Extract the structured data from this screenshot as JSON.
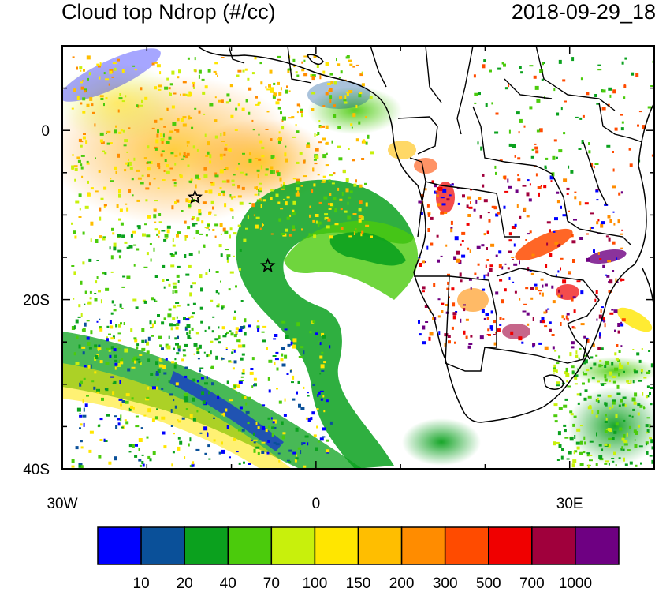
{
  "header": {
    "title": "Cloud top Ndrop (#/cc)",
    "timestamp": "2018-09-29_18"
  },
  "map": {
    "projection": "lat-lon",
    "lon_range": [
      -30,
      40
    ],
    "lat_range": [
      -40,
      10
    ],
    "x_tick_labels": [
      {
        "lon": -30,
        "label": "30W"
      },
      {
        "lon": 0,
        "label": "0"
      },
      {
        "lon": 30,
        "label": "30E"
      }
    ],
    "y_tick_labels": [
      {
        "lat": 0,
        "label": "0"
      },
      {
        "lat": -20,
        "label": "20S"
      },
      {
        "lat": -40,
        "label": "40S"
      }
    ],
    "markers": [
      {
        "name": "star-marker-west",
        "lon": -14.3,
        "lat": -7.9,
        "symbol": "star"
      },
      {
        "name": "star-marker-center",
        "lon": -5.7,
        "lat": -16.0,
        "symbol": "star"
      }
    ]
  },
  "colorbar": {
    "colors": [
      "#0000ff",
      "#0a5099",
      "#0ba11e",
      "#4bcb0c",
      "#c8f00c",
      "#ffe600",
      "#ffbe00",
      "#ff8c00",
      "#ff4b00",
      "#f00000",
      "#a0003c",
      "#6e0082"
    ],
    "labels": [
      "10",
      "20",
      "40",
      "70",
      "100",
      "150",
      "200",
      "300",
      "500",
      "700",
      "1000"
    ]
  }
}
